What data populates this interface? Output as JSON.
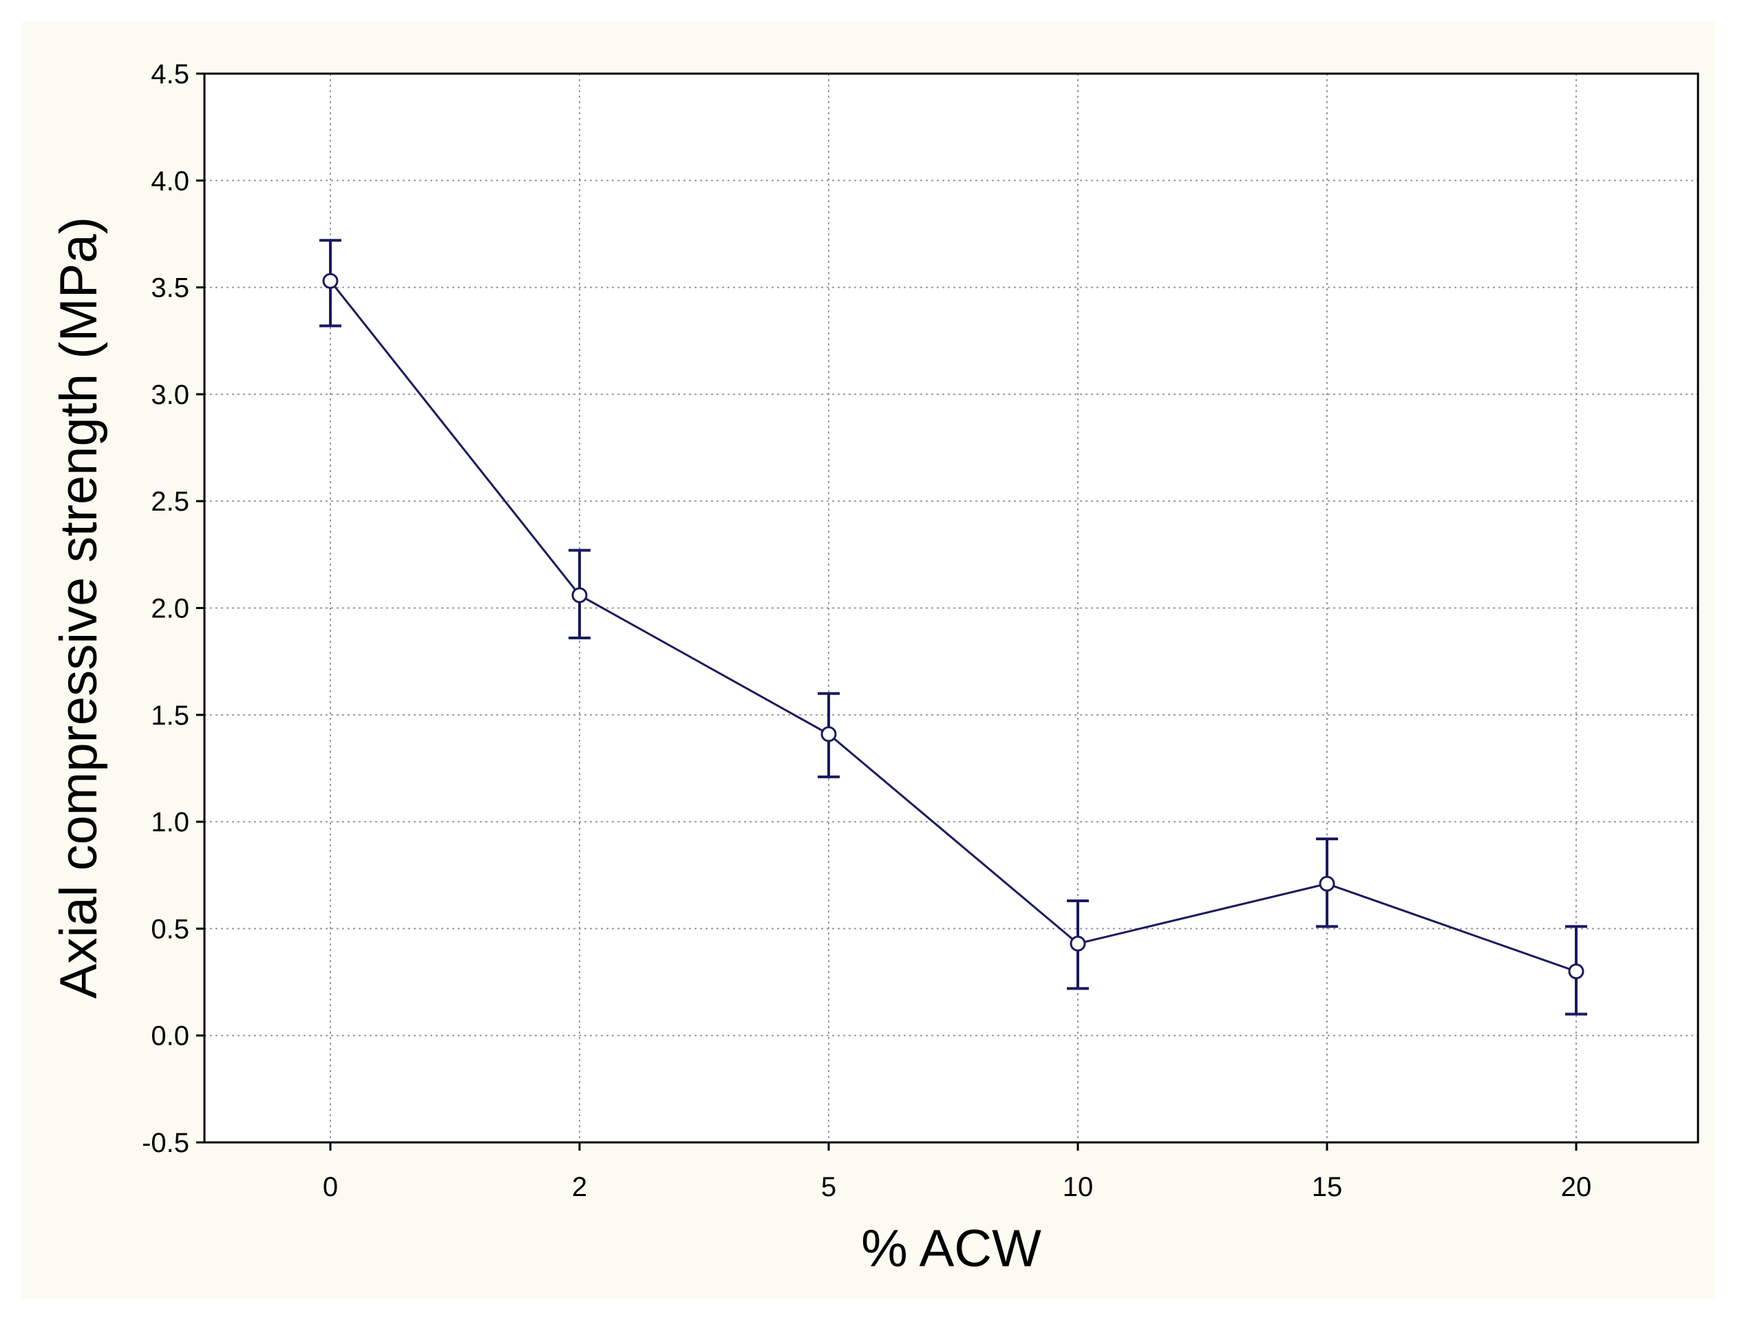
{
  "chart_data": {
    "type": "line",
    "title": "",
    "xlabel": "% ACW",
    "ylabel": "Axial compressive strength (MPa)",
    "categories": [
      "0",
      "2",
      "5",
      "10",
      "15",
      "20"
    ],
    "series": [
      {
        "values": [
          3.53,
          2.06,
          1.41,
          0.43,
          0.71,
          0.3
        ],
        "error_low": [
          3.32,
          1.86,
          1.21,
          0.22,
          0.51,
          0.1
        ],
        "error_high": [
          3.72,
          2.27,
          1.6,
          0.63,
          0.92,
          0.51
        ]
      }
    ],
    "ylim": [
      -0.5,
      4.5
    ],
    "yticks": [
      "4.5",
      "4.0",
      "3.5",
      "3.0",
      "2.5",
      "2.0",
      "1.5",
      "1.0",
      "0.5",
      "0.0",
      "-0.5"
    ],
    "grid": true,
    "colors": {
      "line": "#1a1a60",
      "grid": "#999999",
      "frame_background": "#fbfbf2",
      "plot_background": "#ffffff"
    }
  }
}
